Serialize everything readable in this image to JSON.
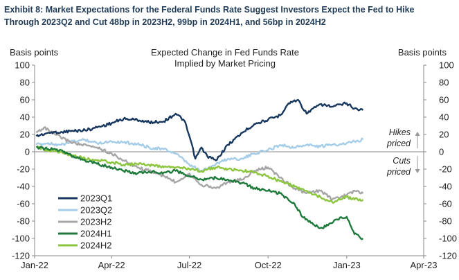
{
  "exhibit_title_line1": "Exhibit 8: Market Expectations for the Federal Funds Rate Suggest Investors Expect the Fed to Hike",
  "exhibit_title_line2": "Through 2023Q2 and Cut 48bp in 2023H2, 99bp in 2024H1, and 56bp in 2024H2",
  "chart_data": {
    "type": "line",
    "title_line1": "Expected Change in Fed Funds Rate",
    "title_line2": "Implied by Market Pricing",
    "ylabel_left": "Basis points",
    "ylabel_right": "Basis points",
    "ylim": [
      -120,
      100
    ],
    "yticks": [
      -120,
      -100,
      -80,
      -60,
      -40,
      -20,
      0,
      20,
      40,
      60,
      80,
      100
    ],
    "xlim": [
      "2022-01-01",
      "2023-04-01"
    ],
    "xtick_labels": [
      "Jan-22",
      "Apr-22",
      "Jul-22",
      "Oct-22",
      "Jan-23",
      "Apr-23"
    ],
    "grid": false,
    "legend_position": "bottom-left",
    "annotations": {
      "hikes_line1": "Hikes",
      "hikes_line2": "priced",
      "cuts_line1": "Cuts",
      "cuts_line2": "priced"
    },
    "series": [
      {
        "name": "2023Q1",
        "color": "#17375e",
        "points": [
          [
            "2022-01-03",
            18
          ],
          [
            "2022-01-17",
            22
          ],
          [
            "2022-02-01",
            23
          ],
          [
            "2022-02-15",
            24
          ],
          [
            "2022-03-01",
            25
          ],
          [
            "2022-03-15",
            28
          ],
          [
            "2022-04-01",
            33
          ],
          [
            "2022-04-15",
            38
          ],
          [
            "2022-05-01",
            37
          ],
          [
            "2022-05-15",
            34
          ],
          [
            "2022-06-01",
            35
          ],
          [
            "2022-06-15",
            44
          ],
          [
            "2022-06-25",
            36
          ],
          [
            "2022-07-01",
            18
          ],
          [
            "2022-07-08",
            -8
          ],
          [
            "2022-07-15",
            5
          ],
          [
            "2022-07-22",
            -5
          ],
          [
            "2022-08-01",
            -10
          ],
          [
            "2022-08-15",
            8
          ],
          [
            "2022-09-01",
            22
          ],
          [
            "2022-09-15",
            32
          ],
          [
            "2022-10-01",
            37
          ],
          [
            "2022-10-15",
            42
          ],
          [
            "2022-10-25",
            56
          ],
          [
            "2022-11-05",
            60
          ],
          [
            "2022-11-15",
            44
          ],
          [
            "2022-12-01",
            55
          ],
          [
            "2022-12-15",
            52
          ],
          [
            "2023-01-01",
            56
          ],
          [
            "2023-01-10",
            50
          ],
          [
            "2023-01-20",
            48
          ]
        ]
      },
      {
        "name": "2023Q2",
        "color": "#a6cde8",
        "points": [
          [
            "2022-01-03",
            8
          ],
          [
            "2022-01-17",
            10
          ],
          [
            "2022-02-01",
            8
          ],
          [
            "2022-02-15",
            12
          ],
          [
            "2022-03-01",
            14
          ],
          [
            "2022-03-15",
            10
          ],
          [
            "2022-04-01",
            12
          ],
          [
            "2022-04-15",
            11
          ],
          [
            "2022-05-01",
            9
          ],
          [
            "2022-05-15",
            5
          ],
          [
            "2022-06-01",
            3
          ],
          [
            "2022-06-15",
            -2
          ],
          [
            "2022-07-01",
            -15
          ],
          [
            "2022-07-15",
            -22
          ],
          [
            "2022-08-01",
            -14
          ],
          [
            "2022-08-15",
            -8
          ],
          [
            "2022-09-01",
            -8
          ],
          [
            "2022-09-15",
            -2
          ],
          [
            "2022-10-01",
            2
          ],
          [
            "2022-10-15",
            8
          ],
          [
            "2022-11-01",
            5
          ],
          [
            "2022-11-15",
            8
          ],
          [
            "2022-12-01",
            6
          ],
          [
            "2022-12-15",
            8
          ],
          [
            "2023-01-01",
            10
          ],
          [
            "2023-01-10",
            12
          ],
          [
            "2023-01-20",
            14
          ]
        ]
      },
      {
        "name": "2023H2",
        "color": "#a6a6a6",
        "points": [
          [
            "2022-01-03",
            22
          ],
          [
            "2022-01-12",
            28
          ],
          [
            "2022-01-25",
            20
          ],
          [
            "2022-02-10",
            12
          ],
          [
            "2022-02-25",
            8
          ],
          [
            "2022-03-15",
            5
          ],
          [
            "2022-04-01",
            -2
          ],
          [
            "2022-04-15",
            -10
          ],
          [
            "2022-05-01",
            -18
          ],
          [
            "2022-05-15",
            -22
          ],
          [
            "2022-06-01",
            -28
          ],
          [
            "2022-06-15",
            -35
          ],
          [
            "2022-07-01",
            -25
          ],
          [
            "2022-07-15",
            -38
          ],
          [
            "2022-08-01",
            -42
          ],
          [
            "2022-08-15",
            -35
          ],
          [
            "2022-09-01",
            -32
          ],
          [
            "2022-09-15",
            -22
          ],
          [
            "2022-10-01",
            -18
          ],
          [
            "2022-10-15",
            -30
          ],
          [
            "2022-11-01",
            -42
          ],
          [
            "2022-11-15",
            -48
          ],
          [
            "2022-12-01",
            -45
          ],
          [
            "2022-12-15",
            -55
          ],
          [
            "2023-01-01",
            -50
          ],
          [
            "2023-01-10",
            -45
          ],
          [
            "2023-01-20",
            -48
          ]
        ]
      },
      {
        "name": "2024H1",
        "color": "#1e7a3a",
        "points": [
          [
            "2022-01-03",
            5
          ],
          [
            "2022-01-17",
            3
          ],
          [
            "2022-02-01",
            2
          ],
          [
            "2022-02-15",
            -5
          ],
          [
            "2022-03-01",
            -10
          ],
          [
            "2022-03-15",
            -14
          ],
          [
            "2022-04-01",
            -18
          ],
          [
            "2022-04-15",
            -22
          ],
          [
            "2022-05-01",
            -25
          ],
          [
            "2022-05-15",
            -23
          ],
          [
            "2022-06-01",
            -24
          ],
          [
            "2022-06-15",
            -22
          ],
          [
            "2022-07-01",
            -28
          ],
          [
            "2022-07-15",
            -32
          ],
          [
            "2022-08-01",
            -30
          ],
          [
            "2022-08-15",
            -32
          ],
          [
            "2022-09-01",
            -36
          ],
          [
            "2022-09-15",
            -42
          ],
          [
            "2022-10-01",
            -45
          ],
          [
            "2022-10-15",
            -48
          ],
          [
            "2022-11-01",
            -60
          ],
          [
            "2022-11-10",
            -75
          ],
          [
            "2022-11-20",
            -82
          ],
          [
            "2022-12-01",
            -88
          ],
          [
            "2022-12-10",
            -85
          ],
          [
            "2022-12-20",
            -78
          ],
          [
            "2023-01-01",
            -75
          ],
          [
            "2023-01-10",
            -95
          ],
          [
            "2023-01-20",
            -100
          ]
        ]
      },
      {
        "name": "2024H2",
        "color": "#8cc63f",
        "points": [
          [
            "2022-01-03",
            5
          ],
          [
            "2022-01-17",
            2
          ],
          [
            "2022-02-01",
            0
          ],
          [
            "2022-02-15",
            -4
          ],
          [
            "2022-03-01",
            -8
          ],
          [
            "2022-03-15",
            -10
          ],
          [
            "2022-04-01",
            -12
          ],
          [
            "2022-04-15",
            -15
          ],
          [
            "2022-05-01",
            -14
          ],
          [
            "2022-05-15",
            -15
          ],
          [
            "2022-06-01",
            -18
          ],
          [
            "2022-06-15",
            -18
          ],
          [
            "2022-07-01",
            -20
          ],
          [
            "2022-07-15",
            -22
          ],
          [
            "2022-08-01",
            -18
          ],
          [
            "2022-08-15",
            -20
          ],
          [
            "2022-09-01",
            -22
          ],
          [
            "2022-09-15",
            -24
          ],
          [
            "2022-10-01",
            -28
          ],
          [
            "2022-10-15",
            -34
          ],
          [
            "2022-11-01",
            -40
          ],
          [
            "2022-11-15",
            -45
          ],
          [
            "2022-12-01",
            -52
          ],
          [
            "2022-12-15",
            -58
          ],
          [
            "2023-01-01",
            -52
          ],
          [
            "2023-01-10",
            -55
          ],
          [
            "2023-01-20",
            -55
          ]
        ]
      }
    ]
  }
}
